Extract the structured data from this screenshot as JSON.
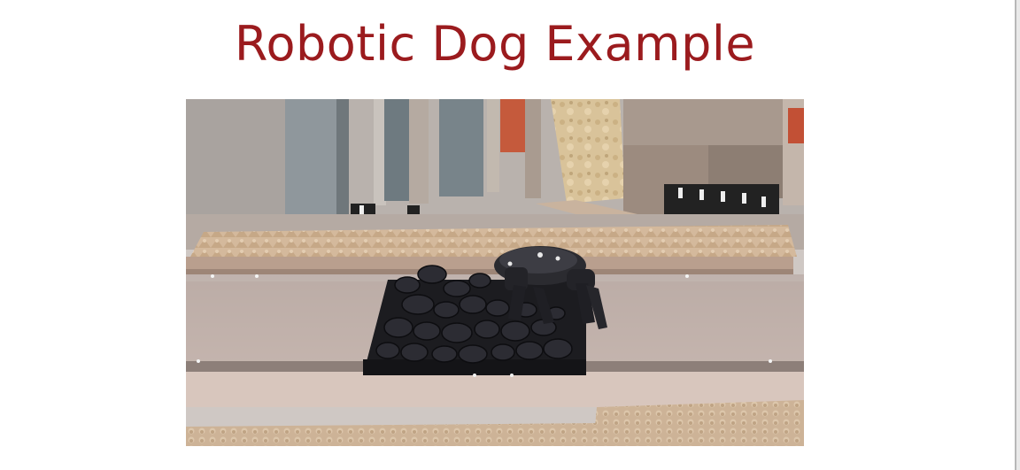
{
  "slide": {
    "title": "Robotic Dog Example",
    "title_color": "#9b1b1e"
  },
  "media": {
    "icon": "robot-dog-photo"
  }
}
